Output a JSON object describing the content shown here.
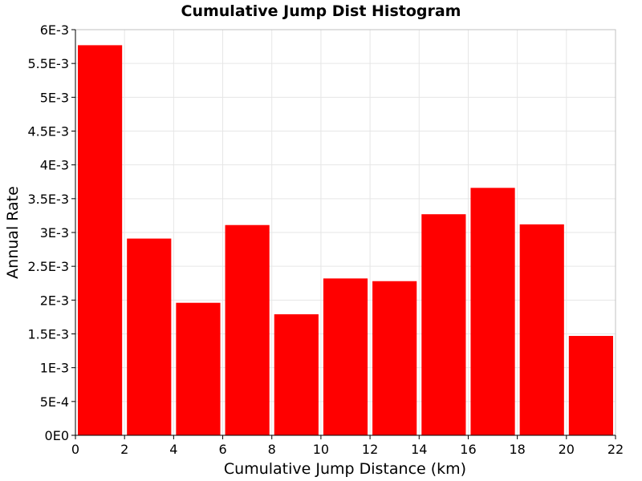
{
  "chart_data": {
    "type": "bar",
    "title": "Cumulative Jump Dist Histogram",
    "xlabel": "Cumulative Jump Distance (km)",
    "ylabel": "Annual Rate",
    "xlim": [
      0,
      22
    ],
    "ylim": [
      0,
      0.006
    ],
    "bin_width": 2,
    "bar_color": "#ff0000",
    "grid": true,
    "x_ticks": [
      "0",
      "2",
      "4",
      "6",
      "8",
      "10",
      "12",
      "14",
      "16",
      "18",
      "20",
      "22"
    ],
    "y_ticks": [
      "0E0",
      "5E-4",
      "1E-3",
      "1.5E-3",
      "2E-3",
      "2.5E-3",
      "3E-3",
      "3.5E-3",
      "4E-3",
      "4.5E-3",
      "5E-3",
      "5.5E-3",
      "6E-3"
    ],
    "bins": [
      {
        "x": 0,
        "value": 0.00577
      },
      {
        "x": 2,
        "value": 0.00291
      },
      {
        "x": 4,
        "value": 0.00196
      },
      {
        "x": 6,
        "value": 0.00311
      },
      {
        "x": 8,
        "value": 0.00179
      },
      {
        "x": 10,
        "value": 0.00232
      },
      {
        "x": 12,
        "value": 0.00228
      },
      {
        "x": 14,
        "value": 0.00327
      },
      {
        "x": 16,
        "value": 0.00366
      },
      {
        "x": 18,
        "value": 0.00312
      },
      {
        "x": 20,
        "value": 0.00147
      }
    ]
  }
}
